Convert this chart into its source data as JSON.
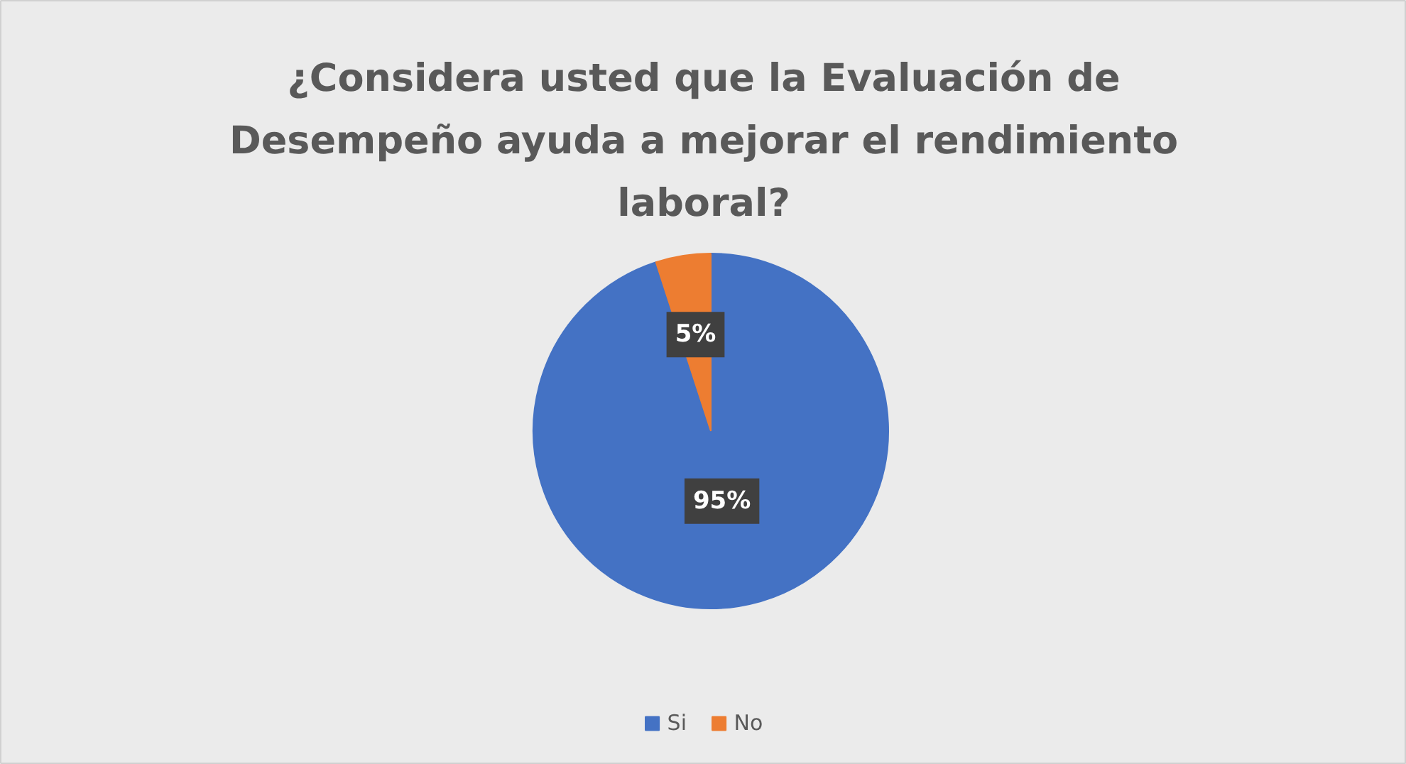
{
  "chart_data": {
    "type": "pie",
    "title": "¿Considera usted que la Evaluación de Desempeño ayuda a mejorar el rendimiento laboral?",
    "categories": [
      "Si",
      "No"
    ],
    "values": [
      95,
      5
    ],
    "colors": [
      "#4472c4",
      "#ed7d31"
    ],
    "value_labels": [
      "95%",
      "5%"
    ],
    "legend": "bottom"
  }
}
